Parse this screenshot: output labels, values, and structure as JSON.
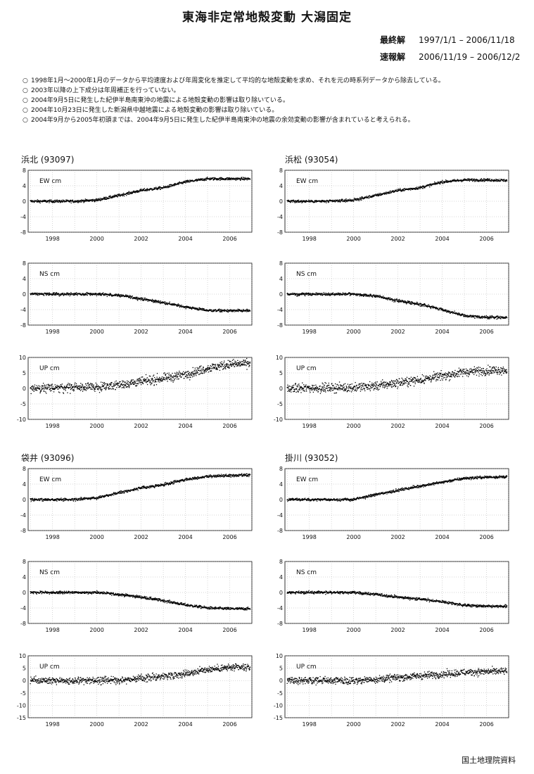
{
  "title": "東海非定常地殻変動 大潟固定",
  "periods": [
    {
      "label": "最終解",
      "range": "1997/1/1 – 2006/11/18"
    },
    {
      "label": "速報解",
      "range": "2006/11/19 – 2006/12/2"
    }
  ],
  "notes": [
    "1998年1月～2000年1月のデータから平均速度および年周変化を推定して平均的な地殻変動を求め、それを元の時系列データから除去している。",
    "2003年以降の上下成分は年周補正を行っていない。",
    "2004年9月5日に発生した紀伊半島南東沖の地震による地殻変動の影響は取り除いている。",
    "2004年10月23日に発生した新潟県中越地震による地殻変動の影響は取り除いている。",
    "2004年9月から2005年初頭までは、2004年9月5日に発生した紀伊半島南東沖の地震の余効変動の影響が含まれていると考えられる。"
  ],
  "note_bullet": "○",
  "footer": "国土地理院資料",
  "colors": {
    "data": "#000000",
    "grid": "#9a9a9a"
  },
  "chart_data": [
    {
      "type": "scatter",
      "station": "浜北",
      "code": "(93097)",
      "component": "EW",
      "label": "EW cm",
      "xlim": [
        1996.9,
        2007.0
      ],
      "xticks": [
        1998,
        2000,
        2002,
        2004,
        2006
      ],
      "ylim": [
        -8,
        8
      ],
      "yticks": [
        -8,
        -4,
        0,
        4,
        8
      ],
      "grid": true,
      "noise": 0.25,
      "trend": [
        [
          1997,
          0
        ],
        [
          1999,
          0
        ],
        [
          2000,
          0.3
        ],
        [
          2001,
          1.5
        ],
        [
          2002,
          2.8
        ],
        [
          2003,
          3.5
        ],
        [
          2004,
          5
        ],
        [
          2005,
          5.8
        ],
        [
          2006,
          5.8
        ],
        [
          2006.92,
          5.8
        ]
      ]
    },
    {
      "type": "scatter",
      "station": "浜北",
      "code": "(93097)",
      "component": "NS",
      "label": "NS cm",
      "xlim": [
        1996.9,
        2007.0
      ],
      "xticks": [
        1998,
        2000,
        2002,
        2004,
        2006
      ],
      "ylim": [
        -8,
        8
      ],
      "yticks": [
        -8,
        -4,
        0,
        4,
        8
      ],
      "grid": true,
      "noise": 0.25,
      "trend": [
        [
          1997,
          0
        ],
        [
          2000,
          0
        ],
        [
          2001,
          -0.3
        ],
        [
          2002,
          -1.2
        ],
        [
          2003,
          -2.2
        ],
        [
          2004,
          -3.3
        ],
        [
          2005,
          -4.2
        ],
        [
          2006,
          -4.3
        ],
        [
          2006.92,
          -4.3
        ]
      ]
    },
    {
      "type": "scatter",
      "station": "浜北",
      "code": "(93097)",
      "component": "UP",
      "label": "UP cm",
      "xlim": [
        1996.9,
        2007.0
      ],
      "xticks": [
        1998,
        2000,
        2002,
        2004,
        2006
      ],
      "ylim": [
        -10,
        10
      ],
      "yticks": [
        -10,
        -5,
        0,
        5,
        10
      ],
      "grid": true,
      "noise": 1.0,
      "trend": [
        [
          1997,
          0
        ],
        [
          2000,
          0.5
        ],
        [
          2001,
          1.2
        ],
        [
          2002,
          2.2
        ],
        [
          2003,
          3.2
        ],
        [
          2004,
          4.5
        ],
        [
          2005,
          6.5
        ],
        [
          2006,
          7.8
        ],
        [
          2006.92,
          8
        ]
      ]
    },
    {
      "type": "scatter",
      "station": "浜松",
      "code": "(93054)",
      "component": "EW",
      "label": "EW cm",
      "xlim": [
        1996.9,
        2007.0
      ],
      "xticks": [
        1998,
        2000,
        2002,
        2004,
        2006
      ],
      "ylim": [
        -8,
        8
      ],
      "yticks": [
        -8,
        -4,
        0,
        4,
        8
      ],
      "grid": true,
      "noise": 0.25,
      "trend": [
        [
          1997,
          0
        ],
        [
          1999,
          0
        ],
        [
          2000,
          0.3
        ],
        [
          2001,
          1.5
        ],
        [
          2002,
          2.8
        ],
        [
          2003,
          3.5
        ],
        [
          2004,
          5
        ],
        [
          2005,
          5.5
        ],
        [
          2006,
          5.5
        ],
        [
          2006.92,
          5.4
        ]
      ]
    },
    {
      "type": "scatter",
      "station": "浜松",
      "code": "(93054)",
      "component": "NS",
      "label": "NS cm",
      "xlim": [
        1996.9,
        2007.0
      ],
      "xticks": [
        1998,
        2000,
        2002,
        2004,
        2006
      ],
      "ylim": [
        -8,
        8
      ],
      "yticks": [
        -8,
        -4,
        0,
        4,
        8
      ],
      "grid": true,
      "noise": 0.25,
      "trend": [
        [
          1997,
          0
        ],
        [
          2000,
          0
        ],
        [
          2001,
          -0.5
        ],
        [
          2002,
          -1.7
        ],
        [
          2003,
          -2.6
        ],
        [
          2004,
          -4
        ],
        [
          2005,
          -5.6
        ],
        [
          2006,
          -6
        ],
        [
          2006.92,
          -6
        ]
      ]
    },
    {
      "type": "scatter",
      "station": "浜松",
      "code": "(93054)",
      "component": "UP",
      "label": "UP cm",
      "xlim": [
        1996.9,
        2007.0
      ],
      "xticks": [
        1998,
        2000,
        2002,
        2004,
        2006
      ],
      "ylim": [
        -10,
        10
      ],
      "yticks": [
        -10,
        -5,
        0,
        5,
        10
      ],
      "grid": true,
      "noise": 1.0,
      "trend": [
        [
          1997,
          0
        ],
        [
          2000,
          0.3
        ],
        [
          2001,
          0.8
        ],
        [
          2002,
          1.8
        ],
        [
          2003,
          2.8
        ],
        [
          2004,
          4
        ],
        [
          2005,
          5.3
        ],
        [
          2006,
          5.8
        ],
        [
          2006.92,
          6
        ]
      ]
    },
    {
      "type": "scatter",
      "station": "袋井",
      "code": "(93096)",
      "component": "EW",
      "label": "EW cm",
      "xlim": [
        1996.9,
        2007.0
      ],
      "xticks": [
        1998,
        2000,
        2002,
        2004,
        2006
      ],
      "ylim": [
        -8,
        8
      ],
      "yticks": [
        -8,
        -4,
        0,
        4,
        8
      ],
      "grid": true,
      "noise": 0.25,
      "trend": [
        [
          1997,
          0
        ],
        [
          1999,
          0
        ],
        [
          2000,
          0.5
        ],
        [
          2001,
          1.8
        ],
        [
          2002,
          3
        ],
        [
          2003,
          3.8
        ],
        [
          2004,
          5.2
        ],
        [
          2005,
          6
        ],
        [
          2006,
          6.2
        ],
        [
          2006.92,
          6.3
        ]
      ]
    },
    {
      "type": "scatter",
      "station": "袋井",
      "code": "(93096)",
      "component": "NS",
      "label": "NS cm",
      "xlim": [
        1996.9,
        2007.0
      ],
      "xticks": [
        1998,
        2000,
        2002,
        2004,
        2006
      ],
      "ylim": [
        -8,
        8
      ],
      "yticks": [
        -8,
        -4,
        0,
        4,
        8
      ],
      "grid": true,
      "noise": 0.25,
      "trend": [
        [
          1997,
          0
        ],
        [
          2000,
          0
        ],
        [
          2001,
          -0.5
        ],
        [
          2002,
          -1.2
        ],
        [
          2003,
          -2.1
        ],
        [
          2004,
          -3.2
        ],
        [
          2005,
          -4
        ],
        [
          2006,
          -4.2
        ],
        [
          2006.92,
          -4.2
        ]
      ]
    },
    {
      "type": "scatter",
      "station": "袋井",
      "code": "(93096)",
      "component": "UP",
      "label": "UP cm",
      "xlim": [
        1996.9,
        2007.0
      ],
      "xticks": [
        1998,
        2000,
        2002,
        2004,
        2006
      ],
      "ylim": [
        -15,
        10
      ],
      "yticks": [
        -15,
        -10,
        -5,
        0,
        5,
        10
      ],
      "grid": true,
      "noise": 1.0,
      "trend": [
        [
          1997,
          0
        ],
        [
          2000,
          0
        ],
        [
          2001,
          0.3
        ],
        [
          2002,
          0.8
        ],
        [
          2003,
          1.8
        ],
        [
          2004,
          2.8
        ],
        [
          2005,
          4.5
        ],
        [
          2006,
          5.2
        ],
        [
          2006.92,
          5.2
        ]
      ]
    },
    {
      "type": "scatter",
      "station": "掛川",
      "code": "(93052)",
      "component": "EW",
      "label": "EW cm",
      "xlim": [
        1996.9,
        2007.0
      ],
      "xticks": [
        1998,
        2000,
        2002,
        2004,
        2006
      ],
      "ylim": [
        -8,
        8
      ],
      "yticks": [
        -8,
        -4,
        0,
        4,
        8
      ],
      "grid": true,
      "noise": 0.25,
      "trend": [
        [
          1997,
          0
        ],
        [
          2000,
          0
        ],
        [
          2001,
          1.3
        ],
        [
          2002,
          2.4
        ],
        [
          2003,
          3.5
        ],
        [
          2004,
          4.5
        ],
        [
          2005,
          5.5
        ],
        [
          2006,
          5.8
        ],
        [
          2006.92,
          5.9
        ]
      ]
    },
    {
      "type": "scatter",
      "station": "掛川",
      "code": "(93052)",
      "component": "NS",
      "label": "NS cm",
      "xlim": [
        1996.9,
        2007.0
      ],
      "xticks": [
        1998,
        2000,
        2002,
        2004,
        2006
      ],
      "ylim": [
        -8,
        8
      ],
      "yticks": [
        -8,
        -4,
        0,
        4,
        8
      ],
      "grid": true,
      "noise": 0.25,
      "trend": [
        [
          1997,
          0
        ],
        [
          2000,
          0
        ],
        [
          2001,
          -0.5
        ],
        [
          2002,
          -1.2
        ],
        [
          2003,
          -1.7
        ],
        [
          2004,
          -2.4
        ],
        [
          2005,
          -3.3
        ],
        [
          2006,
          -3.6
        ],
        [
          2006.92,
          -3.6
        ]
      ]
    },
    {
      "type": "scatter",
      "station": "掛川",
      "code": "(93052)",
      "component": "UP",
      "label": "UP cm",
      "xlim": [
        1996.9,
        2007.0
      ],
      "xticks": [
        1998,
        2000,
        2002,
        2004,
        2006
      ],
      "ylim": [
        -15,
        10
      ],
      "yticks": [
        -15,
        -10,
        -5,
        0,
        5,
        10
      ],
      "grid": true,
      "noise": 1.0,
      "trend": [
        [
          1997,
          0
        ],
        [
          2000,
          0
        ],
        [
          2001,
          0.5
        ],
        [
          2002,
          1.2
        ],
        [
          2003,
          1.9
        ],
        [
          2004,
          2.6
        ],
        [
          2005,
          3.3
        ],
        [
          2006,
          3.6
        ],
        [
          2006.92,
          3.8
        ]
      ]
    }
  ]
}
